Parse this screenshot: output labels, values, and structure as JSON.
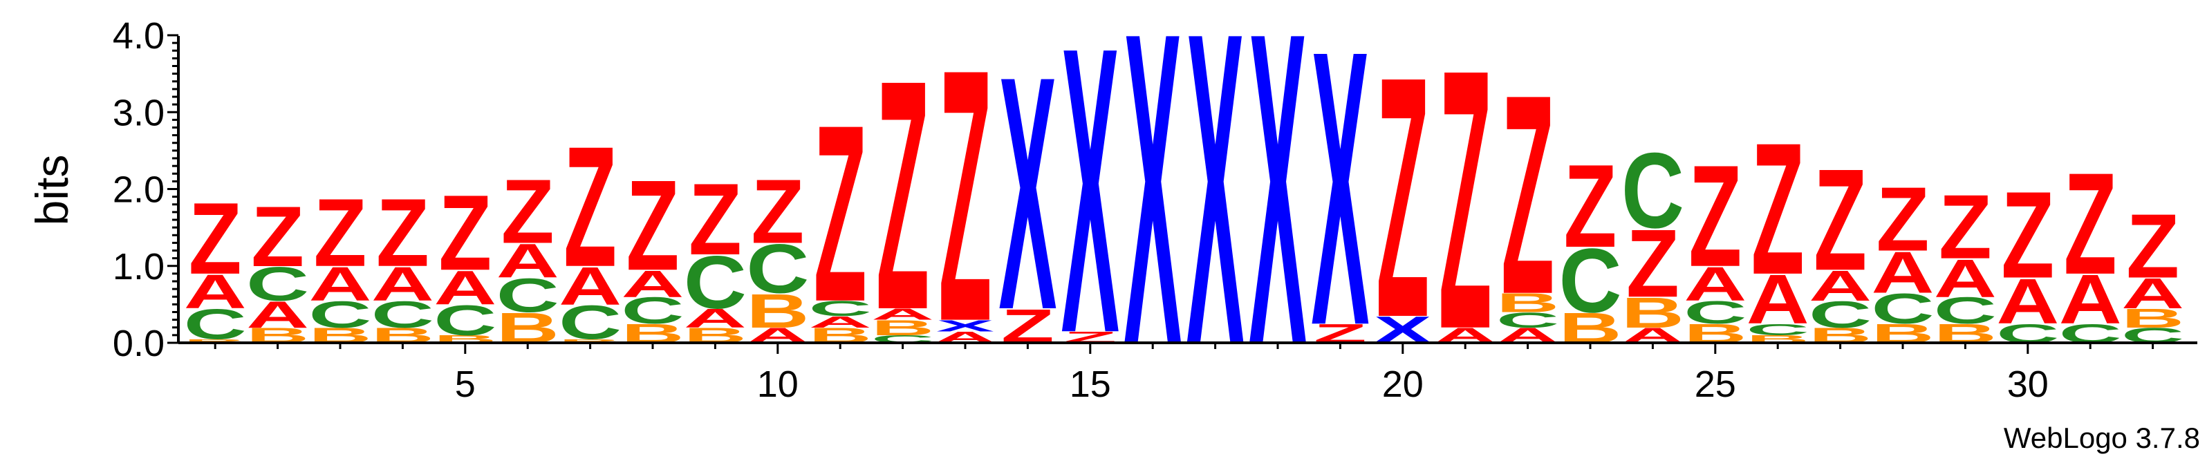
{
  "chart_data": {
    "type": "sequence-logo",
    "ylabel": "bits",
    "ylim": [
      0,
      4.0
    ],
    "yticks": [
      "0.0",
      "1.0",
      "2.0",
      "3.0",
      "4.0"
    ],
    "xticks": [
      "5",
      "10",
      "15",
      "20",
      "25",
      "30"
    ],
    "footer": "WebLogo 3.7.8",
    "colors": {
      "Z": "#ff0000",
      "A": "#ff0000",
      "X": "#0000ff",
      "C": "#228b22",
      "B": "#ff8c00"
    },
    "positions": [
      {
        "pos": 1,
        "stack": [
          [
            "B",
            0.05
          ],
          [
            "C",
            0.4
          ],
          [
            "A",
            0.45
          ],
          [
            "Z",
            0.95
          ]
        ]
      },
      {
        "pos": 2,
        "stack": [
          [
            "B",
            0.2
          ],
          [
            "A",
            0.35
          ],
          [
            "C",
            0.45
          ],
          [
            "Z",
            0.8
          ]
        ]
      },
      {
        "pos": 3,
        "stack": [
          [
            "B",
            0.2
          ],
          [
            "C",
            0.35
          ],
          [
            "A",
            0.45
          ],
          [
            "Z",
            0.9
          ]
        ]
      },
      {
        "pos": 4,
        "stack": [
          [
            "B",
            0.2
          ],
          [
            "C",
            0.35
          ],
          [
            "A",
            0.45
          ],
          [
            "Z",
            0.9
          ]
        ]
      },
      {
        "pos": 5,
        "stack": [
          [
            "B",
            0.1
          ],
          [
            "C",
            0.4
          ],
          [
            "A",
            0.45
          ],
          [
            "Z",
            1.0
          ]
        ]
      },
      {
        "pos": 6,
        "stack": [
          [
            "B",
            0.4
          ],
          [
            "C",
            0.45
          ],
          [
            "A",
            0.45
          ],
          [
            "Z",
            0.85
          ]
        ]
      },
      {
        "pos": 7,
        "stack": [
          [
            "B",
            0.05
          ],
          [
            "C",
            0.45
          ],
          [
            "A",
            0.5
          ],
          [
            "Z",
            1.6
          ]
        ]
      },
      {
        "pos": 8,
        "stack": [
          [
            "B",
            0.25
          ],
          [
            "C",
            0.35
          ],
          [
            "A",
            0.35
          ],
          [
            "Z",
            1.2
          ]
        ]
      },
      {
        "pos": 9,
        "stack": [
          [
            "B",
            0.2
          ],
          [
            "A",
            0.25
          ],
          [
            "C",
            0.7
          ],
          [
            "Z",
            0.95
          ]
        ]
      },
      {
        "pos": 10,
        "stack": [
          [
            "A",
            0.2
          ],
          [
            "B",
            0.45
          ],
          [
            "C",
            0.65
          ],
          [
            "Z",
            0.85
          ]
        ]
      },
      {
        "pos": 11,
        "stack": [
          [
            "B",
            0.2
          ],
          [
            "A",
            0.15
          ],
          [
            "C",
            0.2
          ],
          [
            "Z",
            2.35
          ]
        ]
      },
      {
        "pos": 12,
        "stack": [
          [
            "C",
            0.1
          ],
          [
            "B",
            0.2
          ],
          [
            "A",
            0.15
          ],
          [
            "Z",
            3.05
          ]
        ]
      },
      {
        "pos": 13,
        "stack": [
          [
            "A",
            0.15
          ],
          [
            "X",
            0.15
          ],
          [
            "Z",
            3.35
          ]
        ]
      },
      {
        "pos": 14,
        "stack": [
          [
            "Z",
            0.45
          ],
          [
            "X",
            3.1
          ]
        ]
      },
      {
        "pos": 15,
        "stack": [
          [
            "Z",
            0.15
          ],
          [
            "X",
            3.8
          ]
        ]
      },
      {
        "pos": 16,
        "stack": [
          [
            "X",
            4.15
          ]
        ]
      },
      {
        "pos": 17,
        "stack": [
          [
            "X",
            4.15
          ]
        ]
      },
      {
        "pos": 18,
        "stack": [
          [
            "X",
            4.15
          ]
        ]
      },
      {
        "pos": 19,
        "stack": [
          [
            "Z",
            0.25
          ],
          [
            "X",
            3.65
          ]
        ]
      },
      {
        "pos": 20,
        "stack": [
          [
            "X",
            0.35
          ],
          [
            "Z",
            3.2
          ]
        ]
      },
      {
        "pos": 21,
        "stack": [
          [
            "A",
            0.2
          ],
          [
            "Z",
            3.45
          ]
        ]
      },
      {
        "pos": 22,
        "stack": [
          [
            "A",
            0.2
          ],
          [
            "C",
            0.2
          ],
          [
            "B",
            0.25
          ],
          [
            "Z",
            2.65
          ]
        ]
      },
      {
        "pos": 23,
        "stack": [
          [
            "B",
            0.4
          ],
          [
            "C",
            0.85
          ],
          [
            "Z",
            1.1
          ]
        ]
      },
      {
        "pos": 24,
        "stack": [
          [
            "A",
            0.2
          ],
          [
            "B",
            0.4
          ],
          [
            "Z",
            0.9
          ],
          [
            "C",
            1.0
          ]
        ]
      },
      {
        "pos": 25,
        "stack": [
          [
            "B",
            0.25
          ],
          [
            "C",
            0.3
          ],
          [
            "A",
            0.45
          ],
          [
            "Z",
            1.35
          ]
        ]
      },
      {
        "pos": 26,
        "stack": [
          [
            "B",
            0.1
          ],
          [
            "C",
            0.15
          ],
          [
            "A",
            0.65
          ],
          [
            "Z",
            1.75
          ]
        ]
      },
      {
        "pos": 27,
        "stack": [
          [
            "B",
            0.2
          ],
          [
            "C",
            0.35
          ],
          [
            "A",
            0.4
          ],
          [
            "Z",
            1.35
          ]
        ]
      },
      {
        "pos": 28,
        "stack": [
          [
            "B",
            0.25
          ],
          [
            "C",
            0.4
          ],
          [
            "A",
            0.55
          ],
          [
            "Z",
            0.85
          ]
        ]
      },
      {
        "pos": 29,
        "stack": [
          [
            "B",
            0.25
          ],
          [
            "C",
            0.35
          ],
          [
            "A",
            0.5
          ],
          [
            "Z",
            0.85
          ]
        ]
      },
      {
        "pos": 30,
        "stack": [
          [
            "C",
            0.25
          ],
          [
            "A",
            0.6
          ],
          [
            "Z",
            1.15
          ]
        ]
      },
      {
        "pos": 31,
        "stack": [
          [
            "C",
            0.25
          ],
          [
            "A",
            0.65
          ],
          [
            "Z",
            1.35
          ]
        ]
      },
      {
        "pos": 32,
        "stack": [
          [
            "C",
            0.2
          ],
          [
            "B",
            0.25
          ],
          [
            "A",
            0.4
          ],
          [
            "Z",
            0.85
          ]
        ]
      }
    ]
  }
}
